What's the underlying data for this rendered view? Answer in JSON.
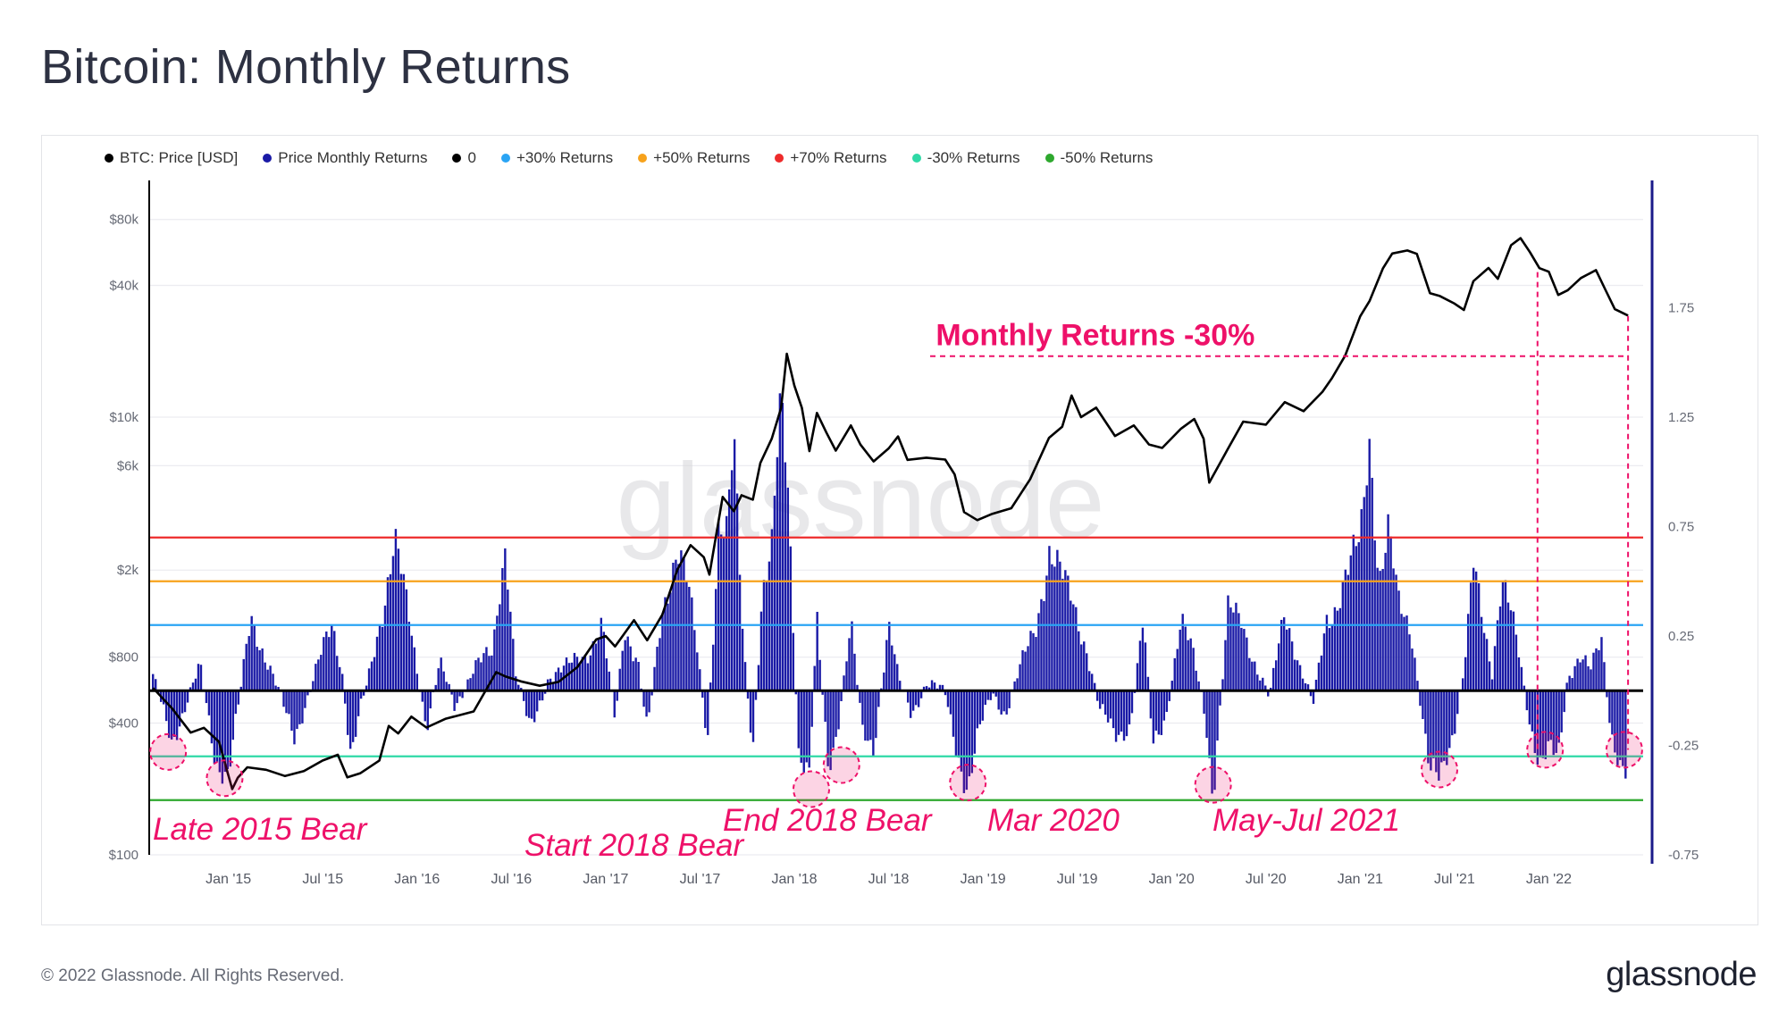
{
  "header": {
    "title": "Bitcoin: Monthly Returns"
  },
  "footer": {
    "copyright": "© 2022 Glassnode. All Rights Reserved.",
    "brand": "glassnode"
  },
  "watermark": "glassnode",
  "colors": {
    "price": "#000000",
    "returns": "#1a1aa6",
    "zero": "#000000",
    "plus30": "#2aa4f4",
    "plus50": "#f7a21b",
    "plus70": "#ee2b2b",
    "minus30": "#2fd9a6",
    "minus50": "#2ea82e",
    "annotation": "#ee1169"
  },
  "legend": [
    {
      "label": "BTC: Price [USD]",
      "color": "#000000"
    },
    {
      "label": "Price Monthly Returns",
      "color": "#1a1aa6"
    },
    {
      "label": "0",
      "color": "#000000"
    },
    {
      "label": "+30% Returns",
      "color": "#2aa4f4"
    },
    {
      "label": "+50% Returns",
      "color": "#f7a21b"
    },
    {
      "label": "+70% Returns",
      "color": "#ee2b2b"
    },
    {
      "label": "-30% Returns",
      "color": "#2fd9a6"
    },
    {
      "label": "-50% Returns",
      "color": "#2ea82e"
    }
  ],
  "chart_data": {
    "type": "line+bar",
    "title": "Bitcoin: Monthly Returns",
    "x_range": [
      2014.58,
      2022.5
    ],
    "x_ticks": [
      {
        "label": "Jan '15",
        "t": 2015.0
      },
      {
        "label": "Jul '15",
        "t": 2015.5
      },
      {
        "label": "Jan '16",
        "t": 2016.0
      },
      {
        "label": "Jul '16",
        "t": 2016.5
      },
      {
        "label": "Jan '17",
        "t": 2017.0
      },
      {
        "label": "Jul '17",
        "t": 2017.5
      },
      {
        "label": "Jan '18",
        "t": 2018.0
      },
      {
        "label": "Jul '18",
        "t": 2018.5
      },
      {
        "label": "Jan '19",
        "t": 2019.0
      },
      {
        "label": "Jul '19",
        "t": 2019.5
      },
      {
        "label": "Jan '20",
        "t": 2020.0
      },
      {
        "label": "Jul '20",
        "t": 2020.5
      },
      {
        "label": "Jan '21",
        "t": 2021.0
      },
      {
        "label": "Jul '21",
        "t": 2021.5
      },
      {
        "label": "Jan '22",
        "t": 2022.0
      }
    ],
    "left_axis": {
      "scale": "log",
      "range": [
        100,
        100000
      ],
      "ticks": [
        {
          "label": "$80k",
          "v": 80000
        },
        {
          "label": "$40k",
          "v": 40000
        },
        {
          "label": "$10k",
          "v": 10000
        },
        {
          "label": "$6k",
          "v": 6000
        },
        {
          "label": "$2k",
          "v": 2000
        },
        {
          "label": "$800",
          "v": 800
        },
        {
          "label": "$400",
          "v": 400
        },
        {
          "label": "$100",
          "v": 100
        }
      ]
    },
    "right_axis": {
      "scale": "linear",
      "range": [
        -0.75,
        2.25
      ],
      "ticks": [
        {
          "label": "1.75",
          "v": 1.75
        },
        {
          "label": "1.25",
          "v": 1.25
        },
        {
          "label": "0.75",
          "v": 0.75
        },
        {
          "label": "0.25",
          "v": 0.25
        },
        {
          "label": "-0.25",
          "v": -0.25
        },
        {
          "label": "-0.75",
          "v": -0.75
        }
      ]
    },
    "reference_lines": [
      {
        "name": "+70% Returns",
        "value": 0.7,
        "color": "#ee2b2b"
      },
      {
        "name": "+50% Returns",
        "value": 0.5,
        "color": "#f7a21b"
      },
      {
        "name": "+30% Returns",
        "value": 0.3,
        "color": "#2aa4f4"
      },
      {
        "name": "0",
        "value": 0.0,
        "color": "#000000"
      },
      {
        "name": "-30% Returns",
        "value": -0.3,
        "color": "#2fd9a6"
      },
      {
        "name": "-50% Returns",
        "value": -0.5,
        "color": "#2ea82e"
      }
    ],
    "price_series": {
      "name": "BTC: Price [USD]",
      "points": [
        [
          2014.6,
          580
        ],
        [
          2014.7,
          470
        ],
        [
          2014.8,
          360
        ],
        [
          2014.87,
          380
        ],
        [
          2014.95,
          330
        ],
        [
          2015.02,
          200
        ],
        [
          2015.05,
          225
        ],
        [
          2015.1,
          250
        ],
        [
          2015.2,
          245
        ],
        [
          2015.3,
          230
        ],
        [
          2015.4,
          240
        ],
        [
          2015.5,
          270
        ],
        [
          2015.58,
          285
        ],
        [
          2015.63,
          225
        ],
        [
          2015.7,
          235
        ],
        [
          2015.8,
          270
        ],
        [
          2015.85,
          390
        ],
        [
          2015.9,
          360
        ],
        [
          2015.97,
          430
        ],
        [
          2016.05,
          380
        ],
        [
          2016.15,
          420
        ],
        [
          2016.3,
          450
        ],
        [
          2016.42,
          680
        ],
        [
          2016.47,
          650
        ],
        [
          2016.55,
          620
        ],
        [
          2016.65,
          590
        ],
        [
          2016.75,
          620
        ],
        [
          2016.85,
          720
        ],
        [
          2016.95,
          960
        ],
        [
          2017.0,
          1000
        ],
        [
          2017.05,
          900
        ],
        [
          2017.15,
          1180
        ],
        [
          2017.22,
          960
        ],
        [
          2017.3,
          1250
        ],
        [
          2017.38,
          2000
        ],
        [
          2017.45,
          2600
        ],
        [
          2017.52,
          2300
        ],
        [
          2017.55,
          1900
        ],
        [
          2017.62,
          4300
        ],
        [
          2017.68,
          3700
        ],
        [
          2017.72,
          4400
        ],
        [
          2017.78,
          4200
        ],
        [
          2017.82,
          6200
        ],
        [
          2017.88,
          8000
        ],
        [
          2017.93,
          11000
        ],
        [
          2017.96,
          19500
        ],
        [
          2018.0,
          14000
        ],
        [
          2018.04,
          11000
        ],
        [
          2018.08,
          7000
        ],
        [
          2018.12,
          10500
        ],
        [
          2018.17,
          8500
        ],
        [
          2018.22,
          7000
        ],
        [
          2018.3,
          9200
        ],
        [
          2018.35,
          7500
        ],
        [
          2018.42,
          6300
        ],
        [
          2018.5,
          7200
        ],
        [
          2018.55,
          8200
        ],
        [
          2018.6,
          6400
        ],
        [
          2018.7,
          6500
        ],
        [
          2018.8,
          6400
        ],
        [
          2018.85,
          5500
        ],
        [
          2018.9,
          3700
        ],
        [
          2018.97,
          3400
        ],
        [
          2019.05,
          3600
        ],
        [
          2019.15,
          3850
        ],
        [
          2019.25,
          5200
        ],
        [
          2019.35,
          8000
        ],
        [
          2019.42,
          9000
        ],
        [
          2019.47,
          12500
        ],
        [
          2019.52,
          10000
        ],
        [
          2019.6,
          11000
        ],
        [
          2019.7,
          8200
        ],
        [
          2019.8,
          9200
        ],
        [
          2019.88,
          7500
        ],
        [
          2019.95,
          7200
        ],
        [
          2020.05,
          8900
        ],
        [
          2020.12,
          9800
        ],
        [
          2020.17,
          8000
        ],
        [
          2020.2,
          5000
        ],
        [
          2020.3,
          7200
        ],
        [
          2020.38,
          9500
        ],
        [
          2020.5,
          9200
        ],
        [
          2020.6,
          11700
        ],
        [
          2020.7,
          10700
        ],
        [
          2020.8,
          13000
        ],
        [
          2020.85,
          15000
        ],
        [
          2020.92,
          19000
        ],
        [
          2021.0,
          29000
        ],
        [
          2021.05,
          34000
        ],
        [
          2021.12,
          48000
        ],
        [
          2021.17,
          56000
        ],
        [
          2021.25,
          58000
        ],
        [
          2021.3,
          56000
        ],
        [
          2021.37,
          37000
        ],
        [
          2021.42,
          36000
        ],
        [
          2021.5,
          33000
        ],
        [
          2021.55,
          31000
        ],
        [
          2021.6,
          42000
        ],
        [
          2021.68,
          48000
        ],
        [
          2021.73,
          43000
        ],
        [
          2021.8,
          61000
        ],
        [
          2021.85,
          66000
        ],
        [
          2021.9,
          57000
        ],
        [
          2021.95,
          48000
        ],
        [
          2022.0,
          46000
        ],
        [
          2022.05,
          36000
        ],
        [
          2022.1,
          38000
        ],
        [
          2022.17,
          43000
        ],
        [
          2022.25,
          47000
        ],
        [
          2022.3,
          38000
        ],
        [
          2022.35,
          31000
        ],
        [
          2022.42,
          29000
        ]
      ]
    },
    "returns_series": {
      "name": "Price Monthly Returns",
      "points": [
        [
          2014.6,
          0.05
        ],
        [
          2014.7,
          -0.22
        ],
        [
          2014.78,
          -0.05
        ],
        [
          2014.85,
          0.1
        ],
        [
          2014.93,
          -0.3
        ],
        [
          2015.0,
          -0.38
        ],
        [
          2015.05,
          -0.1
        ],
        [
          2015.12,
          0.35
        ],
        [
          2015.2,
          0.15
        ],
        [
          2015.3,
          -0.1
        ],
        [
          2015.35,
          -0.2
        ],
        [
          2015.45,
          0.05
        ],
        [
          2015.55,
          0.3
        ],
        [
          2015.6,
          0.12
        ],
        [
          2015.65,
          -0.3
        ],
        [
          2015.7,
          -0.1
        ],
        [
          2015.75,
          0.08
        ],
        [
          2015.82,
          0.4
        ],
        [
          2015.88,
          0.7
        ],
        [
          2015.93,
          0.45
        ],
        [
          2016.0,
          0.1
        ],
        [
          2016.05,
          -0.15
        ],
        [
          2016.12,
          0.12
        ],
        [
          2016.2,
          -0.08
        ],
        [
          2016.3,
          0.12
        ],
        [
          2016.4,
          0.15
        ],
        [
          2016.47,
          0.72
        ],
        [
          2016.52,
          0.1
        ],
        [
          2016.6,
          -0.2
        ],
        [
          2016.7,
          0.08
        ],
        [
          2016.8,
          0.1
        ],
        [
          2016.9,
          0.18
        ],
        [
          2016.98,
          0.3
        ],
        [
          2017.05,
          -0.15
        ],
        [
          2017.1,
          0.3
        ],
        [
          2017.17,
          0.15
        ],
        [
          2017.22,
          -0.2
        ],
        [
          2017.3,
          0.35
        ],
        [
          2017.38,
          0.7
        ],
        [
          2017.43,
          0.5
        ],
        [
          2017.48,
          0.2
        ],
        [
          2017.54,
          -0.22
        ],
        [
          2017.6,
          0.8
        ],
        [
          2017.64,
          0.7
        ],
        [
          2017.68,
          1.1
        ],
        [
          2017.73,
          0.2
        ],
        [
          2017.78,
          -0.25
        ],
        [
          2017.83,
          0.45
        ],
        [
          2017.88,
          0.6
        ],
        [
          2017.93,
          1.35
        ],
        [
          2017.97,
          0.9
        ],
        [
          2018.02,
          -0.25
        ],
        [
          2018.08,
          -0.4
        ],
        [
          2018.12,
          0.3
        ],
        [
          2018.18,
          -0.35
        ],
        [
          2018.23,
          -0.15
        ],
        [
          2018.3,
          0.3
        ],
        [
          2018.36,
          -0.2
        ],
        [
          2018.42,
          -0.25
        ],
        [
          2018.5,
          0.3
        ],
        [
          2018.55,
          0.05
        ],
        [
          2018.62,
          -0.1
        ],
        [
          2018.7,
          0.04
        ],
        [
          2018.8,
          -0.02
        ],
        [
          2018.86,
          -0.25
        ],
        [
          2018.92,
          -0.45
        ],
        [
          2018.98,
          -0.2
        ],
        [
          2019.05,
          0.0
        ],
        [
          2019.12,
          -0.1
        ],
        [
          2019.2,
          0.1
        ],
        [
          2019.28,
          0.3
        ],
        [
          2019.35,
          0.65
        ],
        [
          2019.42,
          0.5
        ],
        [
          2019.48,
          0.4
        ],
        [
          2019.55,
          0.2
        ],
        [
          2019.62,
          -0.1
        ],
        [
          2019.7,
          -0.2
        ],
        [
          2019.78,
          -0.15
        ],
        [
          2019.85,
          0.3
        ],
        [
          2019.9,
          -0.25
        ],
        [
          2019.97,
          -0.1
        ],
        [
          2020.05,
          0.3
        ],
        [
          2020.12,
          0.15
        ],
        [
          2020.18,
          -0.1
        ],
        [
          2020.22,
          -0.48
        ],
        [
          2020.3,
          0.35
        ],
        [
          2020.37,
          0.35
        ],
        [
          2020.45,
          0.1
        ],
        [
          2020.52,
          -0.05
        ],
        [
          2020.6,
          0.4
        ],
        [
          2020.68,
          0.1
        ],
        [
          2020.75,
          -0.08
        ],
        [
          2020.82,
          0.35
        ],
        [
          2020.88,
          0.4
        ],
        [
          2020.95,
          0.55
        ],
        [
          2021.0,
          0.7
        ],
        [
          2021.05,
          1.2
        ],
        [
          2021.1,
          0.5
        ],
        [
          2021.15,
          0.7
        ],
        [
          2021.2,
          0.4
        ],
        [
          2021.27,
          0.3
        ],
        [
          2021.32,
          -0.05
        ],
        [
          2021.37,
          -0.4
        ],
        [
          2021.42,
          -0.42
        ],
        [
          2021.5,
          -0.15
        ],
        [
          2021.55,
          0.1
        ],
        [
          2021.6,
          0.55
        ],
        [
          2021.65,
          0.3
        ],
        [
          2021.7,
          0.1
        ],
        [
          2021.75,
          0.55
        ],
        [
          2021.8,
          0.35
        ],
        [
          2021.85,
          0.1
        ],
        [
          2021.9,
          -0.15
        ],
        [
          2021.95,
          -0.3
        ],
        [
          2022.0,
          -0.25
        ],
        [
          2022.05,
          -0.35
        ],
        [
          2022.1,
          0.05
        ],
        [
          2022.17,
          0.2
        ],
        [
          2022.22,
          0.1
        ],
        [
          2022.28,
          0.2
        ],
        [
          2022.33,
          -0.2
        ],
        [
          2022.38,
          -0.3
        ],
        [
          2022.42,
          -0.35
        ]
      ]
    },
    "annotations": [
      {
        "text": "Monthly Returns -30%",
        "type": "callout"
      },
      {
        "text": "Late 2015 Bear",
        "t": 2014.98
      },
      {
        "text": "Start 2018 Bear",
        "t": 2018.1
      },
      {
        "text": "End 2018 Bear",
        "t": 2018.92
      },
      {
        "text": "Mar 2020",
        "t": 2020.22
      },
      {
        "text": "May-Jul 2021",
        "t": 2021.42
      }
    ],
    "highlight_circles": [
      {
        "t": 2014.68,
        "v": -0.28
      },
      {
        "t": 2014.98,
        "v": -0.4
      },
      {
        "t": 2018.09,
        "v": -0.45
      },
      {
        "t": 2018.25,
        "v": -0.34
      },
      {
        "t": 2018.92,
        "v": -0.42
      },
      {
        "t": 2020.22,
        "v": -0.43
      },
      {
        "t": 2021.42,
        "v": -0.36
      },
      {
        "t": 2021.98,
        "v": -0.27
      },
      {
        "t": 2022.4,
        "v": -0.27
      }
    ]
  }
}
